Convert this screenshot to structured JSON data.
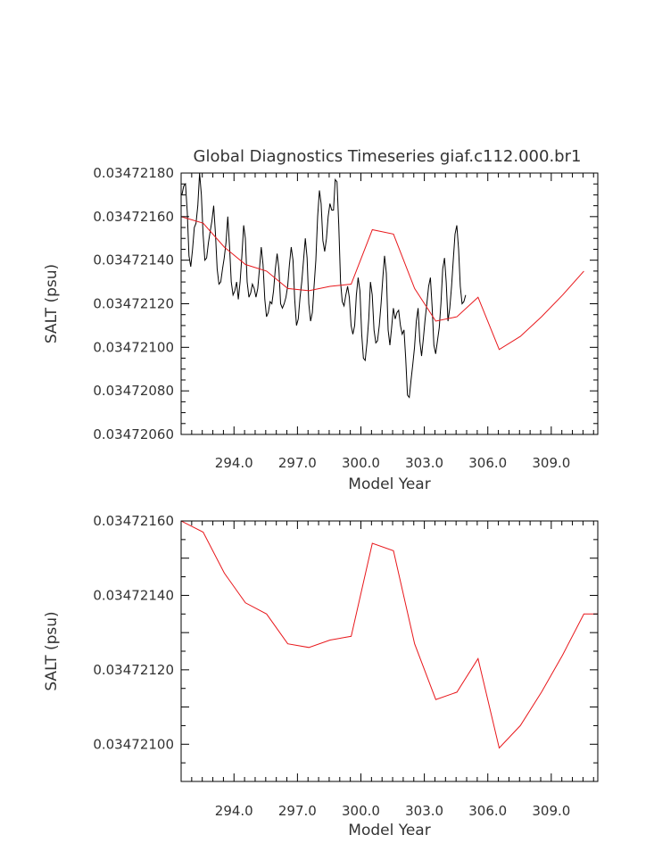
{
  "title": "Global Diagnostics Timeseries giaf.c112.000.br1",
  "colors": {
    "monthly": "#000000",
    "annual": "#e8171b",
    "frame": "#000000",
    "text": "#333333"
  },
  "chart_data": [
    {
      "type": "line",
      "title": "Global Diagnostics Timeseries giaf.c112.000.br1",
      "xlabel": "Model Year",
      "ylabel": "SALT (psu)",
      "xlim": [
        291.5,
        311.2
      ],
      "ylim": [
        0.0347206,
        0.0347218
      ],
      "xtick_values": [
        294,
        297,
        300,
        303,
        306,
        309
      ],
      "xtick_labels": [
        "294.0",
        "297.0",
        "300.0",
        "303.0",
        "306.0",
        "309.0"
      ],
      "ytick_values": [
        0.0347206,
        0.0347208,
        0.034721,
        0.0347212,
        0.0347214,
        0.0347216,
        0.0347218
      ],
      "ytick_labels": [
        "0.03472060",
        "0.03472080",
        "0.03472100",
        "0.03472120",
        "0.03472140",
        "0.03472160",
        "0.03472180"
      ],
      "series": [
        {
          "kind": "monthly",
          "x_start": 291.54,
          "x_step": 0.0833,
          "values": [
            0.0347217,
            0.03472174,
            0.03472175,
            0.03472162,
            0.03472142,
            0.03472137,
            0.03472145,
            0.03472155,
            0.03472157,
            0.03472165,
            0.0347218,
            0.0347217,
            0.03472152,
            0.0347214,
            0.03472141,
            0.03472148,
            0.03472153,
            0.03472158,
            0.03472165,
            0.03472152,
            0.03472136,
            0.03472129,
            0.0347213,
            0.03472136,
            0.03472141,
            0.03472148,
            0.0347216,
            0.03472146,
            0.0347213,
            0.03472124,
            0.03472126,
            0.0347213,
            0.03472122,
            0.0347213,
            0.03472142,
            0.03472156,
            0.0347215,
            0.0347213,
            0.03472123,
            0.03472125,
            0.03472129,
            0.03472127,
            0.03472123,
            0.03472127,
            0.03472136,
            0.03472146,
            0.03472138,
            0.03472122,
            0.03472114,
            0.03472116,
            0.03472121,
            0.0347212,
            0.03472126,
            0.03472136,
            0.03472143,
            0.03472136,
            0.0347212,
            0.03472118,
            0.0347212,
            0.03472123,
            0.03472128,
            0.03472138,
            0.03472146,
            0.0347214,
            0.03472122,
            0.0347211,
            0.03472113,
            0.03472123,
            0.0347213,
            0.0347214,
            0.0347215,
            0.03472141,
            0.0347212,
            0.03472112,
            0.03472116,
            0.03472128,
            0.0347214,
            0.0347216,
            0.03472172,
            0.03472166,
            0.03472149,
            0.03472144,
            0.0347215,
            0.0347216,
            0.03472166,
            0.03472163,
            0.03472163,
            0.03472177,
            0.03472176,
            0.03472156,
            0.0347213,
            0.03472121,
            0.03472119,
            0.03472124,
            0.03472128,
            0.03472123,
            0.0347211,
            0.03472106,
            0.0347211,
            0.03472124,
            0.03472132,
            0.03472126,
            0.03472106,
            0.03472095,
            0.03472094,
            0.03472102,
            0.03472113,
            0.0347213,
            0.03472124,
            0.03472108,
            0.03472102,
            0.03472103,
            0.0347211,
            0.0347212,
            0.03472132,
            0.03472142,
            0.03472134,
            0.03472108,
            0.03472101,
            0.03472109,
            0.03472118,
            0.03472113,
            0.03472116,
            0.03472117,
            0.0347211,
            0.03472106,
            0.03472108,
            0.03472095,
            0.03472078,
            0.03472077,
            0.03472085,
            0.03472092,
            0.034721,
            0.03472112,
            0.03472118,
            0.03472103,
            0.03472096,
            0.03472104,
            0.03472113,
            0.0347212,
            0.03472128,
            0.03472132,
            0.03472118,
            0.03472101,
            0.03472097,
            0.03472103,
            0.03472109,
            0.0347212,
            0.03472136,
            0.03472141,
            0.0347213,
            0.03472112,
            0.03472118,
            0.03472128,
            0.0347214,
            0.03472152,
            0.03472156,
            0.03472145,
            0.03472128,
            0.0347212,
            0.03472121,
            0.03472124
          ]
        },
        {
          "kind": "annual",
          "x": [
            291.5,
            292.54,
            293.54,
            294.54,
            295.54,
            296.54,
            297.54,
            298.54,
            299.54,
            300.54,
            301.54,
            302.54,
            303.54,
            304.54,
            305.54,
            306.54,
            307.54,
            308.54,
            309.54,
            310.54
          ],
          "values": [
            0.0347216,
            0.03472157,
            0.03472146,
            0.03472138,
            0.03472135,
            0.03472127,
            0.03472126,
            0.03472128,
            0.03472129,
            0.03472154,
            0.03472152,
            0.03472127,
            0.03472112,
            0.03472114,
            0.03472123,
            0.03472099,
            0.03472105,
            0.03472114,
            0.03472124,
            0.03472135
          ]
        }
      ]
    },
    {
      "type": "line",
      "xlabel": "Model Year",
      "ylabel": "SALT (psu)",
      "xlim": [
        291.5,
        311.2
      ],
      "ylim": [
        0.0347209,
        0.0347216
      ],
      "xtick_values": [
        294,
        297,
        300,
        303,
        306,
        309
      ],
      "xtick_labels": [
        "294.0",
        "297.0",
        "300.0",
        "303.0",
        "306.0",
        "309.0"
      ],
      "ytick_values": [
        0.034721,
        0.0347212,
        0.0347214,
        0.0347216
      ],
      "ytick_labels": [
        "0.03472100",
        "0.03472120",
        "0.03472140",
        "0.03472160"
      ],
      "series": [
        {
          "kind": "annual",
          "x": [
            291.5,
            292.54,
            293.54,
            294.54,
            295.54,
            296.54,
            297.54,
            298.54,
            299.54,
            300.54,
            301.54,
            302.54,
            303.54,
            304.54,
            305.54,
            306.54,
            307.54,
            308.54,
            309.54,
            310.54,
            311.2
          ],
          "values": [
            0.0347216,
            0.03472157,
            0.03472146,
            0.03472138,
            0.03472135,
            0.03472127,
            0.03472126,
            0.03472128,
            0.03472129,
            0.03472154,
            0.03472152,
            0.03472127,
            0.03472112,
            0.03472114,
            0.03472123,
            0.03472099,
            0.03472105,
            0.03472114,
            0.03472124,
            0.03472135,
            0.03472135
          ]
        }
      ]
    }
  ]
}
